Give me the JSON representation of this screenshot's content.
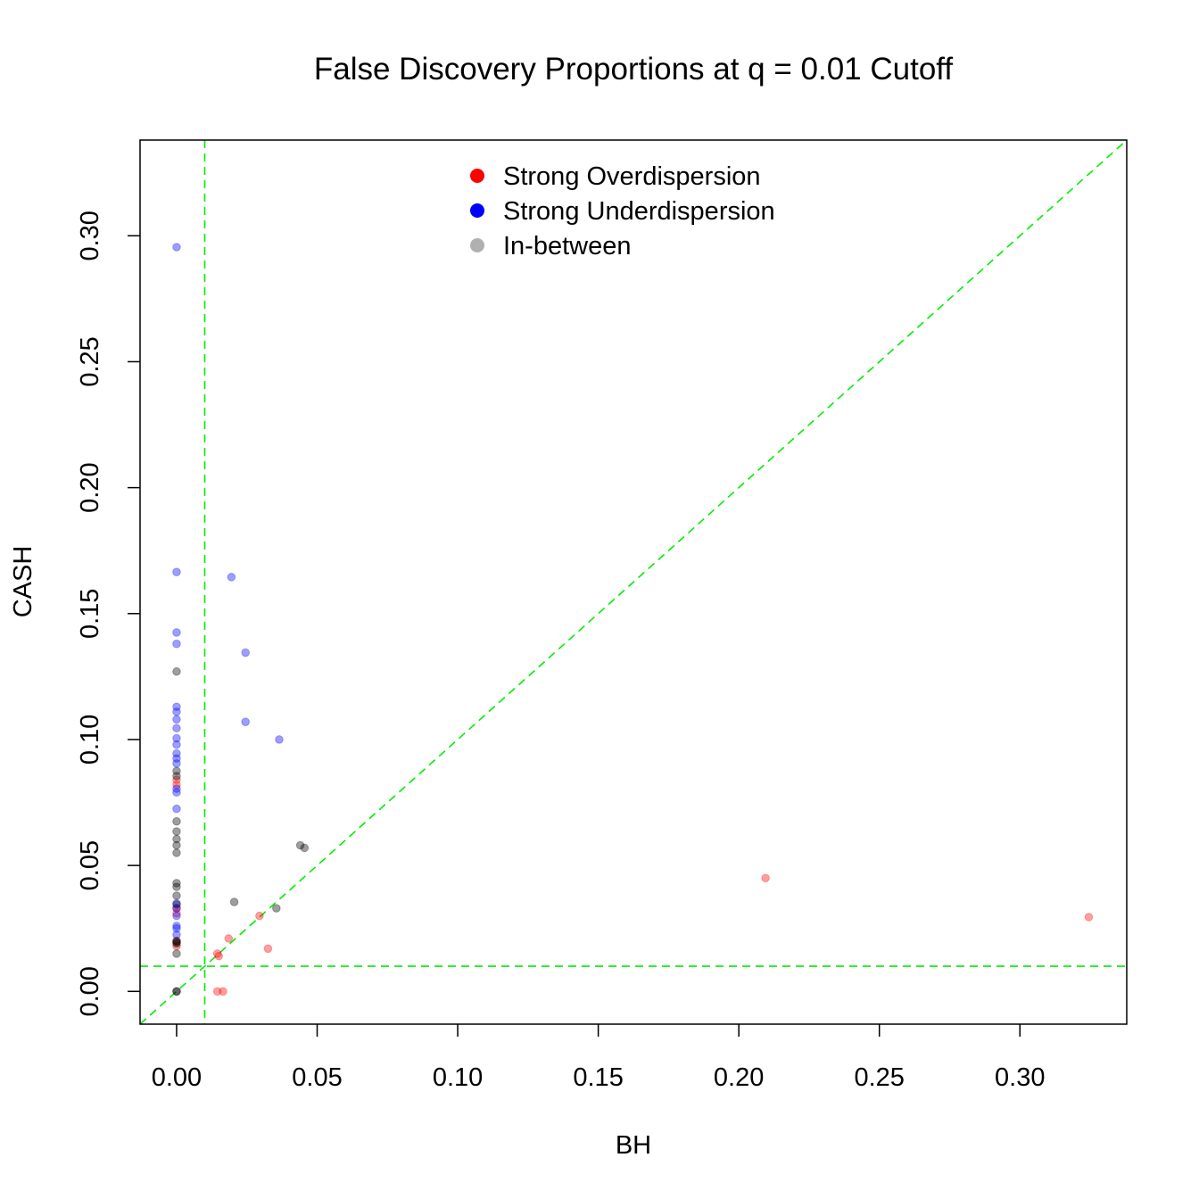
{
  "chart_data": {
    "type": "scatter",
    "title": "False Discovery Proportions at q = 0.01 Cutoff",
    "xlabel": "BH",
    "ylabel": "CASH",
    "xlim": [
      -0.013,
      0.338
    ],
    "ylim": [
      -0.013,
      0.338
    ],
    "x_ticks": [
      "0.00",
      "0.05",
      "0.10",
      "0.15",
      "0.20",
      "0.25",
      "0.30"
    ],
    "y_ticks": [
      "0.00",
      "0.05",
      "0.10",
      "0.15",
      "0.20",
      "0.25",
      "0.30"
    ],
    "tick_values": [
      0,
      0.05,
      0.1,
      0.15,
      0.2,
      0.25,
      0.3
    ],
    "reference_lines": [
      {
        "kind": "vertical",
        "value": 0.01,
        "color": "#00ee00",
        "style": "dashed"
      },
      {
        "kind": "horizontal",
        "value": 0.01,
        "color": "#00ee00",
        "style": "dashed"
      },
      {
        "kind": "diagonal",
        "slope": 1,
        "intercept": 0,
        "color": "#00ee00",
        "style": "dashed"
      }
    ],
    "legend": {
      "placement": "top-center",
      "entries": [
        {
          "label": "Strong Overdispersion",
          "color": "#ff0000"
        },
        {
          "label": "Strong Underdispersion",
          "color": "#0000ff"
        },
        {
          "label": "In-between",
          "color": "#b0b0b0"
        }
      ]
    },
    "series": [
      {
        "name": "Strong Overdispersion",
        "color": "#ff0000",
        "points": [
          [
            0,
            0.084
          ],
          [
            0,
            0.082
          ],
          [
            0,
            0.033
          ],
          [
            0,
            0.031
          ],
          [
            0,
            0.02
          ],
          [
            0,
            0.018
          ],
          [
            0.0145,
            0.015
          ],
          [
            0.015,
            0.014
          ],
          [
            0.0185,
            0.021
          ],
          [
            0.0295,
            0.03
          ],
          [
            0.0325,
            0.017
          ],
          [
            0.0145,
            0
          ],
          [
            0.0165,
            0
          ],
          [
            0.2095,
            0.045
          ],
          [
            0.3245,
            0.0295
          ]
        ]
      },
      {
        "name": "Strong Underdispersion",
        "color": "#0000ff",
        "points": [
          [
            0,
            0.2955
          ],
          [
            0,
            0.1665
          ],
          [
            0,
            0.1425
          ],
          [
            0,
            0.138
          ],
          [
            0,
            0.113
          ],
          [
            0,
            0.111
          ],
          [
            0,
            0.108
          ],
          [
            0,
            0.1045
          ],
          [
            0,
            0.1005
          ],
          [
            0,
            0.098
          ],
          [
            0,
            0.0945
          ],
          [
            0,
            0.0925
          ],
          [
            0,
            0.0905
          ],
          [
            0,
            0.0805
          ],
          [
            0,
            0.079
          ],
          [
            0,
            0.0725
          ],
          [
            0,
            0.035
          ],
          [
            0,
            0.033
          ],
          [
            0,
            0.03
          ],
          [
            0,
            0.026
          ],
          [
            0,
            0.025
          ],
          [
            0,
            0.0225
          ],
          [
            0.0195,
            0.1645
          ],
          [
            0.0245,
            0.107
          ],
          [
            0.0245,
            0.1345
          ],
          [
            0.0365,
            0.1
          ]
        ]
      },
      {
        "name": "In-between",
        "color": "#000000",
        "points": [
          [
            0,
            0.127
          ],
          [
            0,
            0.0875
          ],
          [
            0,
            0.0855
          ],
          [
            0,
            0.0675
          ],
          [
            0,
            0.0635
          ],
          [
            0,
            0.0605
          ],
          [
            0,
            0.058
          ],
          [
            0,
            0.055
          ],
          [
            0,
            0.043
          ],
          [
            0,
            0.0415
          ],
          [
            0,
            0.038
          ],
          [
            0,
            0.0345
          ],
          [
            0,
            0.02
          ],
          [
            0,
            0.0195
          ],
          [
            0,
            0.019
          ],
          [
            0,
            0.015
          ],
          [
            0,
            0
          ],
          [
            0,
            0
          ],
          [
            0.0205,
            0.0355
          ],
          [
            0.0355,
            0.033
          ],
          [
            0.044,
            0.058
          ],
          [
            0.0455,
            0.057
          ]
        ]
      }
    ]
  }
}
